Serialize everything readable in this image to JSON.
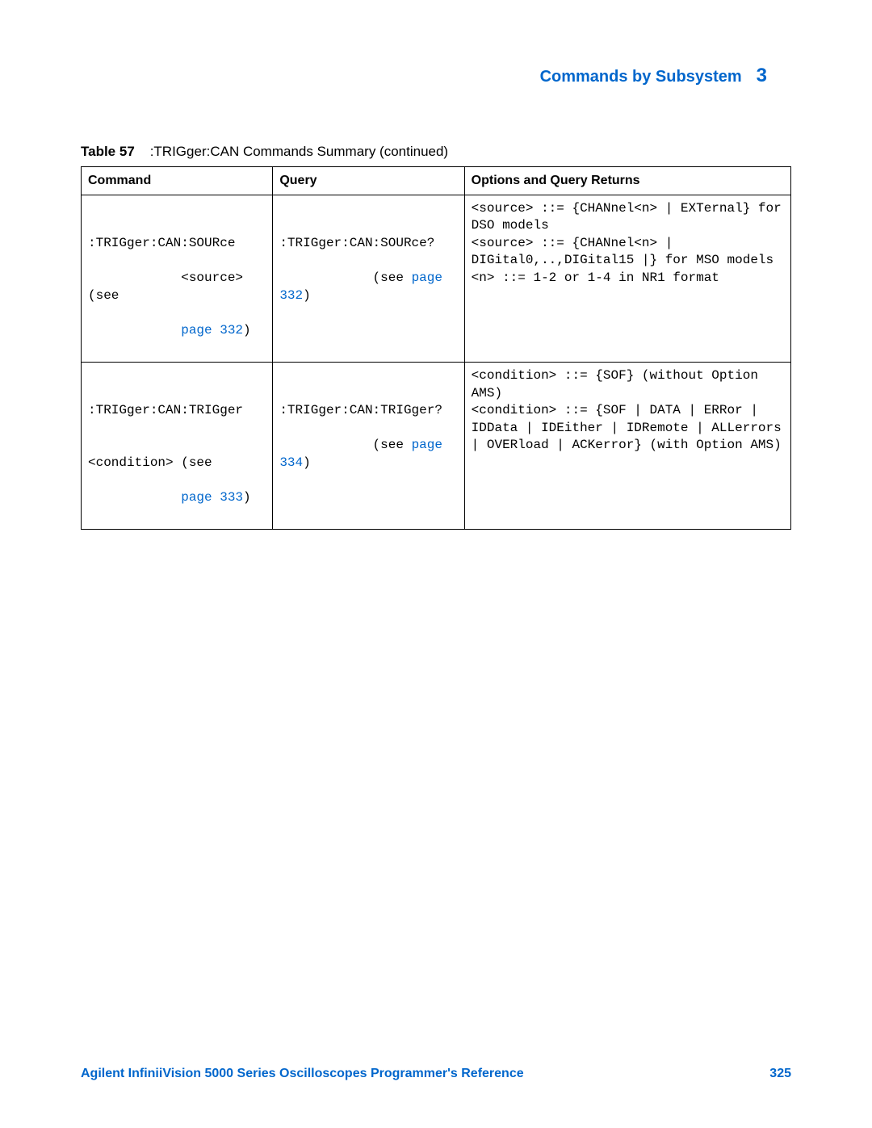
{
  "colors": {
    "link": "#0066cc",
    "text": "#000000",
    "border": "#000000",
    "background": "#ffffff"
  },
  "typography": {
    "body_font": "Arial",
    "mono_font": "Courier New",
    "header_title_size_pt": 15,
    "header_num_size_pt": 18,
    "caption_size_pt": 13,
    "cell_size_pt": 12,
    "footer_size_pt": 12
  },
  "header": {
    "title": "Commands by Subsystem",
    "chapter_number": "3"
  },
  "table": {
    "caption_label": "Table 57",
    "caption_text": ":TRIGger:CAN Commands Summary (continued)",
    "columns": [
      "Command",
      "Query",
      "Options and Query Returns"
    ],
    "column_widths_pct": [
      27,
      27,
      46
    ],
    "rows": [
      {
        "command": {
          "line1": ":TRIGger:CAN:SOURce",
          "line2a": "<source> (see",
          "page_ref": "page 332",
          "line2b": ")"
        },
        "query": {
          "line1": ":TRIGger:CAN:SOURce?",
          "line2a": "(see ",
          "page_ref": "page 332",
          "line2b": ")"
        },
        "options": "<source> ::= {CHANnel<n> | EXTernal} for DSO models\n<source> ::= {CHANnel<n> | DIGital0,..,DIGital15 |} for MSO models\n<n> ::= 1-2 or 1-4 in NR1 format"
      },
      {
        "command": {
          "line1": ":TRIGger:CAN:TRIGger",
          "line2a": "<condition> (see",
          "page_ref": "page 333",
          "line2b": ")"
        },
        "query": {
          "line1": ":TRIGger:CAN:TRIGger?",
          "line2a": "(see ",
          "page_ref": "page 334",
          "line2b": ")"
        },
        "options": "<condition> ::= {SOF} (without Option AMS)\n<condition> ::= {SOF | DATA | ERRor | IDData | IDEither | IDRemote | ALLerrors | OVERload | ACKerror} (with Option AMS)"
      }
    ]
  },
  "footer": {
    "book_title": "Agilent InfiniiVision 5000 Series Oscilloscopes Programmer's Reference",
    "page_number": "325"
  }
}
